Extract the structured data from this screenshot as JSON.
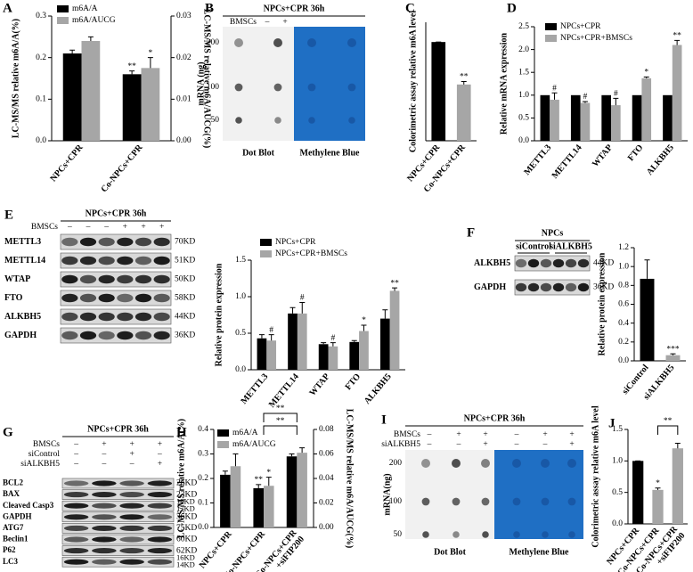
{
  "chart_data": [
    {
      "type": "bar",
      "panel": "A",
      "ylabel": "LC-MS/MS relative m6A/A(%)",
      "y2label": "LC-MS/MS relative m6A/AUCG(%)",
      "categories": [
        "NPCs+CPR",
        "Co-NPCs+CPR"
      ],
      "series": [
        {
          "name": "m6A/A",
          "color": "#000000",
          "values": [
            0.21,
            0.16
          ],
          "errors": [
            0.008,
            0.008
          ],
          "markers": [
            null,
            "**"
          ]
        },
        {
          "name": "m6A/AUCG",
          "color": "#a6a6a6",
          "axis": "y2",
          "values": [
            0.024,
            0.0175
          ],
          "errors": [
            0.001,
            0.0025
          ],
          "markers": [
            null,
            "*"
          ]
        }
      ],
      "ylim": [
        0,
        0.3
      ],
      "yticks": [
        {
          "value": 0,
          "label": "0.0"
        },
        0.1,
        0.2,
        0.3
      ],
      "y2lim": [
        0,
        0.03
      ],
      "y2ticks": [
        {
          "value": 0,
          "label": "0.00"
        },
        0.01,
        0.02,
        0.03
      ]
    },
    {
      "type": "bar",
      "panel": "C",
      "ylabel": "Colorimetric assay relative m6A level",
      "categories": [
        "NPCs+CPR",
        "Co-NPCs+CPR"
      ],
      "values": [
        1.0,
        0.57
      ],
      "errors": [
        0,
        0.03
      ],
      "markers": [
        null,
        "**"
      ],
      "colors": [
        "#000000",
        "#a6a6a6"
      ],
      "ylim": [
        0,
        1.2
      ]
    },
    {
      "type": "bar",
      "panel": "D",
      "ylabel": "Relative mRNA expression",
      "categories": [
        "METTL3",
        "METTL14",
        "WTAP",
        "FTO",
        "ALKBH5"
      ],
      "series": [
        {
          "name": "NPCs+CPR",
          "color": "#000000",
          "values": [
            1,
            1,
            1,
            1,
            1
          ]
        },
        {
          "name": "NPCs+CPR+BMSCs",
          "color": "#a6a6a6",
          "values": [
            0.9,
            0.83,
            0.78,
            1.37,
            2.1
          ],
          "errors": [
            0.15,
            0.03,
            0.15,
            0.03,
            0.1
          ],
          "markers": [
            "#",
            "#",
            "#",
            "*",
            "**"
          ]
        }
      ],
      "ylim": [
        0,
        2.5
      ],
      "yticks": [
        {
          "value": 0,
          "label": "0.0"
        },
        0.5,
        {
          "value": 1,
          "label": "1.0"
        },
        1.5,
        {
          "value": 2,
          "label": "2.0"
        },
        2.5
      ]
    },
    {
      "type": "bar",
      "ylabel": "Relative protein expression",
      "categories": [
        "METTL3",
        "METTL14",
        "WTAP",
        "FTO",
        "ALKBH5"
      ],
      "series": [
        {
          "name": "NPCs+CPR",
          "color": "#000000",
          "values": [
            0.43,
            0.77,
            0.35,
            0.38,
            0.7
          ],
          "errors": [
            0.05,
            0.08,
            0.02,
            0.02,
            0.12
          ]
        },
        {
          "name": "NPCs+CPR+BMSCs",
          "color": "#a6a6a6",
          "values": [
            0.4,
            0.77,
            0.32,
            0.53,
            1.08
          ],
          "errors": [
            0.08,
            0.15,
            0.05,
            0.08,
            0.04
          ],
          "markers": [
            "#",
            "#",
            "#",
            "*",
            "**"
          ]
        }
      ],
      "ylim": [
        0,
        1.5
      ],
      "yticks": [
        {
          "value": 0,
          "label": "0.0"
        },
        0.5,
        {
          "value": 1,
          "label": "1.0"
        },
        1.5
      ]
    },
    {
      "type": "bar",
      "ylabel": "Relative protein expression",
      "categories": [
        "siControl",
        "siALKBH5"
      ],
      "values": [
        0.87,
        0.06
      ],
      "errors": [
        0.2,
        0.015
      ],
      "markers": [
        null,
        "***"
      ],
      "colors": [
        "#000000",
        "#a6a6a6"
      ],
      "ylim": [
        0,
        1.2
      ],
      "yticks": [
        {
          "value": 0,
          "label": "0.0"
        },
        0.2,
        0.4,
        0.6,
        0.8,
        {
          "value": 1,
          "label": "1.0"
        },
        1.2
      ]
    },
    {
      "type": "bar",
      "panel": "H",
      "ylabel": "LC-MS/MS relative m6A/A(%)",
      "y2label": "LC-MS/MS relative m6A/AUCG(%)",
      "categories": [
        "NPCs+CPR",
        "Co-NPCs+CPR",
        "Co-NPCs+CPR +siFIP200"
      ],
      "series": [
        {
          "name": "m6A/A",
          "color": "#000000",
          "values": [
            0.215,
            0.16,
            0.29
          ],
          "errors": [
            0.015,
            0.015,
            0.01
          ],
          "markers": [
            null,
            "**",
            null
          ]
        },
        {
          "name": "m6A/AUCG",
          "color": "#a6a6a6",
          "axis": "y2",
          "values": [
            0.05,
            0.034,
            0.061
          ],
          "errors": [
            0.01,
            0.007,
            0.004
          ],
          "markers": [
            null,
            "*",
            null
          ]
        }
      ],
      "ylim": [
        0,
        0.4
      ],
      "yticks": [
        {
          "value": 0,
          "label": "0.0"
        },
        0.1,
        0.2,
        0.3,
        0.4
      ],
      "y2lim": [
        0,
        0.08
      ],
      "y2ticks": [
        {
          "value": 0,
          "label": "0.00"
        },
        0.02,
        0.04,
        0.06,
        0.08
      ],
      "annotations": [
        "**",
        "**"
      ]
    },
    {
      "type": "bar",
      "panel": "J",
      "ylabel": "Colorimetric assay relative m6A level",
      "categories": [
        "NPCs+CPR",
        "Co-NPCs+CPR",
        "Co-NPCs+CPR +siFIP200"
      ],
      "values": [
        1.0,
        0.54,
        1.2
      ],
      "errors": [
        0,
        0.03,
        0.08
      ],
      "markers": [
        null,
        "*",
        null
      ],
      "colors": [
        "#000000",
        "#a6a6a6",
        "#a6a6a6"
      ],
      "ylim": [
        0,
        1.5
      ],
      "yticks": [
        {
          "value": 0,
          "label": "0.0"
        },
        0.5,
        {
          "value": 1,
          "label": "1.0"
        },
        1.5
      ],
      "annotations": [
        "**"
      ]
    }
  ],
  "blots": [
    {
      "type": "dot-blot",
      "panel": "B",
      "title": "NPCs+CPR 36h",
      "conditions": [
        {
          "name": "BMSCs",
          "signs": [
            "–",
            "+"
          ]
        }
      ],
      "amount_label": "mRNA (ng)",
      "amounts": [
        200,
        100,
        50
      ],
      "captions": [
        "Dot Blot",
        "Methylene Blue"
      ]
    },
    {
      "type": "western",
      "panel": "E",
      "title": "NPCs+CPR 36h",
      "conditions": [
        {
          "name": "BMSCs",
          "signs": [
            "–",
            "–",
            "–",
            "+",
            "+",
            "+"
          ]
        }
      ],
      "rows": [
        {
          "name": "METTL3",
          "sizes": [
            "70KD"
          ]
        },
        {
          "name": "METTL14",
          "sizes": [
            "51KD"
          ]
        },
        {
          "name": "WTAP",
          "sizes": [
            "50KD"
          ]
        },
        {
          "name": "FTO",
          "sizes": [
            "58KD"
          ]
        },
        {
          "name": "ALKBH5",
          "sizes": [
            "44KD"
          ]
        },
        {
          "name": "GAPDH",
          "sizes": [
            "36KD"
          ]
        }
      ]
    },
    {
      "type": "western",
      "panel": "F",
      "title": "NPCs",
      "groups": [
        "siControl",
        "siALKBH5"
      ],
      "rows": [
        {
          "name": "ALKBH5",
          "sizes": [
            "44KD"
          ]
        },
        {
          "name": "GAPDH",
          "sizes": [
            "36KD"
          ]
        }
      ]
    },
    {
      "type": "western",
      "panel": "G",
      "title": "NPCs+CPR 36h",
      "conditions": [
        {
          "name": "BMSCs",
          "signs": [
            "–",
            "+",
            "+",
            "+"
          ]
        },
        {
          "name": "siControl",
          "signs": [
            "–",
            "–",
            "+",
            "–"
          ]
        },
        {
          "name": "siALKBH5",
          "signs": [
            "–",
            "–",
            "–",
            "+"
          ]
        }
      ],
      "rows": [
        {
          "name": "BCL2",
          "sizes": [
            "26KD"
          ]
        },
        {
          "name": "BAX",
          "sizes": [
            "23KD"
          ]
        },
        {
          "name": "Cleaved Casp3",
          "sizes": [
            "19KD",
            "17KD"
          ]
        },
        {
          "name": "GAPDH",
          "sizes": [
            "36KD"
          ]
        },
        {
          "name": "ATG7",
          "sizes": [
            "75KD"
          ]
        },
        {
          "name": "Beclin1",
          "sizes": [
            "60KD"
          ]
        },
        {
          "name": "P62",
          "sizes": [
            "62KD"
          ]
        },
        {
          "name": "LC3",
          "sizes": [
            "16KD",
            "14KD"
          ]
        }
      ]
    },
    {
      "type": "dot-blot",
      "panel": "I",
      "title": "NPCs+CPR 36h",
      "conditions": [
        {
          "name": "BMSCs",
          "signs": [
            "–",
            "+",
            "+",
            "–",
            "+",
            "+"
          ]
        },
        {
          "name": "siALKBH5",
          "signs": [
            "–",
            "–",
            "+",
            "–",
            "–",
            "+"
          ]
        }
      ],
      "amount_label": "mRNA(ng)",
      "amounts": [
        200,
        100,
        50
      ],
      "captions": [
        "Dot Blot",
        "Methylene Blue"
      ]
    }
  ]
}
